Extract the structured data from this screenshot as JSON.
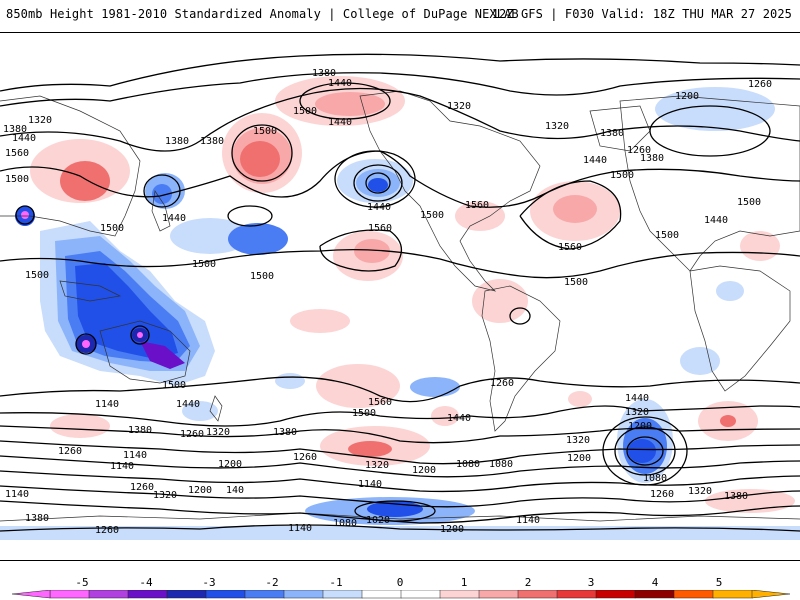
{
  "header": {
    "left": "850mb Height 1981-2010 Standardized Anomaly | College of DuPage NEXLAB",
    "right": "12Z GFS | F030 Valid: 18Z THU MAR 27 2025"
  },
  "colorbar": {
    "ticks": [
      "-5",
      "-4",
      "-3",
      "-2",
      "-1",
      "0",
      "1",
      "2",
      "3",
      "4",
      "5"
    ],
    "colors": [
      "#ff66ff",
      "#b040e0",
      "#6a10c8",
      "#1c28b0",
      "#2050e8",
      "#4a7cf4",
      "#8cb4fa",
      "#c8dcfc",
      "#ffffff",
      "#ffffff",
      "#fcd4d4",
      "#f8a8a8",
      "#f07070",
      "#e83838",
      "#c80000",
      "#8c0000",
      "#ff5a00",
      "#ffb000"
    ]
  },
  "contours": {
    "labels": [
      "1380",
      "1440",
      "1500",
      "1560",
      "1320",
      "1260",
      "1200",
      "1140",
      "1080",
      "1020"
    ]
  },
  "map_labels": [
    {
      "id": "l1",
      "text": "1380"
    },
    {
      "id": "l2",
      "text": "1440"
    },
    {
      "id": "l3",
      "text": "1500"
    },
    {
      "id": "l4",
      "text": "1320"
    },
    {
      "id": "l5",
      "text": "1380"
    },
    {
      "id": "l6",
      "text": "1440"
    },
    {
      "id": "l7",
      "text": "1320"
    },
    {
      "id": "l8",
      "text": "1260"
    },
    {
      "id": "l9",
      "text": "1200"
    },
    {
      "id": "l10",
      "text": "1380"
    },
    {
      "id": "l11",
      "text": "1320"
    },
    {
      "id": "l12",
      "text": "1440"
    },
    {
      "id": "l13",
      "text": "1560"
    },
    {
      "id": "l14",
      "text": "1500"
    },
    {
      "id": "l15",
      "text": "1380"
    },
    {
      "id": "l16",
      "text": "1500"
    },
    {
      "id": "l17",
      "text": "1440"
    },
    {
      "id": "l18",
      "text": "1500"
    },
    {
      "id": "l19",
      "text": "1560"
    },
    {
      "id": "l20",
      "text": "1440"
    },
    {
      "id": "l21",
      "text": "1500"
    },
    {
      "id": "l22",
      "text": "1500"
    },
    {
      "id": "l23",
      "text": "1560"
    },
    {
      "id": "l24",
      "text": "1500"
    },
    {
      "id": "l25",
      "text": "1560"
    },
    {
      "id": "l26",
      "text": "1500"
    },
    {
      "id": "l27",
      "text": "1440"
    },
    {
      "id": "l28",
      "text": "1500"
    },
    {
      "id": "l29",
      "text": "1500"
    },
    {
      "id": "l30",
      "text": "1500"
    },
    {
      "id": "l31",
      "text": "1500"
    },
    {
      "id": "l32",
      "text": "1380"
    },
    {
      "id": "l33",
      "text": "1380"
    },
    {
      "id": "l34",
      "text": "1440"
    },
    {
      "id": "l35",
      "text": "1260"
    },
    {
      "id": "l36",
      "text": "1560"
    },
    {
      "id": "l37",
      "text": "1500"
    },
    {
      "id": "l38",
      "text": "1440"
    },
    {
      "id": "l39",
      "text": "1320"
    },
    {
      "id": "l40",
      "text": "1440"
    },
    {
      "id": "l41",
      "text": "1380"
    },
    {
      "id": "l42",
      "text": "1260"
    },
    {
      "id": "l43",
      "text": "1140"
    },
    {
      "id": "l44",
      "text": "1200"
    },
    {
      "id": "l45",
      "text": "1260"
    },
    {
      "id": "l46",
      "text": "1320"
    },
    {
      "id": "l47",
      "text": "1200"
    },
    {
      "id": "l48",
      "text": "1080"
    },
    {
      "id": "l49",
      "text": "1140"
    },
    {
      "id": "l50",
      "text": "1080"
    },
    {
      "id": "l51",
      "text": "1200"
    },
    {
      "id": "l52",
      "text": "1140"
    },
    {
      "id": "l53",
      "text": "1020"
    },
    {
      "id": "l54",
      "text": "1080"
    },
    {
      "id": "l55",
      "text": "1200"
    },
    {
      "id": "l56",
      "text": "1140"
    },
    {
      "id": "l57",
      "text": "1260"
    },
    {
      "id": "l58",
      "text": "1140"
    },
    {
      "id": "l59",
      "text": "1320"
    },
    {
      "id": "l60",
      "text": "1200"
    },
    {
      "id": "l61",
      "text": "140"
    },
    {
      "id": "l62",
      "text": "1380"
    },
    {
      "id": "l63",
      "text": "1260"
    },
    {
      "id": "l64",
      "text": "1140"
    },
    {
      "id": "l65",
      "text": "1260"
    },
    {
      "id": "l66",
      "text": "1320"
    },
    {
      "id": "l67",
      "text": "1380"
    },
    {
      "id": "l68",
      "text": "1320"
    },
    {
      "id": "l69",
      "text": "1200"
    },
    {
      "id": "l70",
      "text": "1080"
    },
    {
      "id": "l71",
      "text": "1260"
    },
    {
      "id": "l72",
      "text": "1380"
    },
    {
      "id": "l73",
      "text": "1140"
    },
    {
      "id": "l74",
      "text": "1320"
    },
    {
      "id": "l75",
      "text": "1440"
    },
    {
      "id": "l76",
      "text": "1500"
    },
    {
      "id": "l77",
      "text": "1260"
    }
  ]
}
